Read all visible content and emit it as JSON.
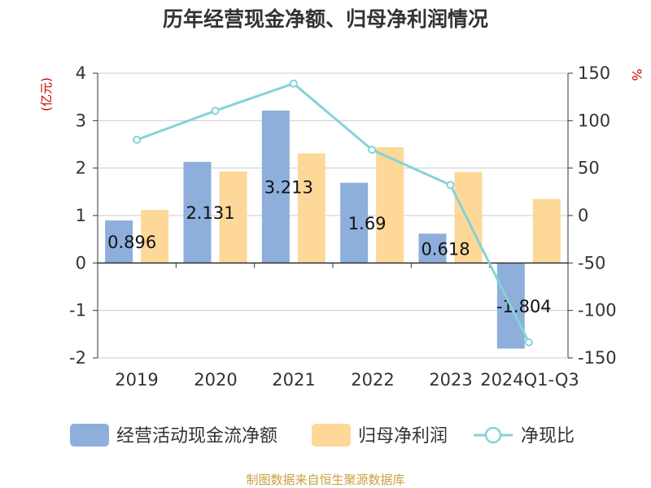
{
  "chart_data": {
    "type": "bar",
    "title": "历年经营现金净额、归母净利润情况",
    "categories": [
      "2019",
      "2020",
      "2021",
      "2022",
      "2023",
      "2024Q1-Q3"
    ],
    "y_left": {
      "label": "(亿元)",
      "min": -2,
      "max": 4,
      "ticks": [
        -2,
        -1,
        0,
        1,
        2,
        3,
        4
      ]
    },
    "y_right": {
      "label": "%",
      "min": -150,
      "max": 150,
      "ticks": [
        -150,
        -100,
        -50,
        0,
        50,
        100,
        150
      ]
    },
    "series": [
      {
        "name": "经营活动现金流净额",
        "type": "bar",
        "axis": "left",
        "color": "#8eaedb",
        "values": [
          0.896,
          2.131,
          3.213,
          1.69,
          0.618,
          -1.804
        ],
        "labels": [
          "0.896",
          "2.131",
          "3.213",
          "1.69",
          "0.618",
          "-1.804"
        ]
      },
      {
        "name": "归母净利润",
        "type": "bar",
        "axis": "left",
        "color": "#fdd899",
        "values": [
          1.12,
          1.93,
          2.31,
          2.44,
          1.92,
          1.35
        ]
      },
      {
        "name": "净现比",
        "type": "line",
        "axis": "right",
        "color": "#86d2d8",
        "values": [
          79.8,
          110.4,
          139.1,
          69.3,
          32.2,
          -133.6
        ]
      }
    ],
    "legend_position": "bottom",
    "grid": true,
    "source": "制图数据来自恒生聚源数据库"
  }
}
